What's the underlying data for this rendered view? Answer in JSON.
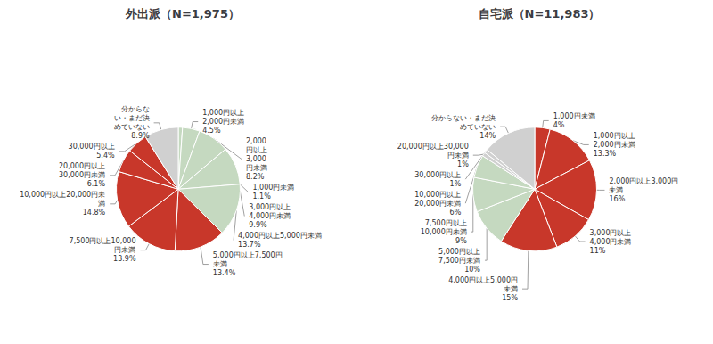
{
  "chart_data": [
    {
      "type": "pie",
      "title": "外出派（N=1,975）",
      "categories": [
        "1,000円未満",
        "1,000円以上\n2,000円未満",
        "2,000\n円以上\n3,000\n円未満",
        "3,000円以上\n4,000円未満",
        "4,000円以上5,000円未満",
        "5,000円以上7,500円\n未満",
        "7,500円以上10,000\n円未満",
        "10,000円以上20,000円未\n満",
        "20,000円以上\n30,000円未満",
        "30,000円以上",
        "分からな\nい・まだ決\nめていない"
      ],
      "values": [
        1.1,
        4.5,
        8.2,
        9.9,
        13.7,
        13.4,
        13.9,
        14.8,
        6.1,
        5.4,
        8.9
      ],
      "value_labels": [
        "1.1%",
        "4.5%",
        "8.2%",
        "9.9%",
        "13.7%",
        "13.4%",
        "13.9%",
        "14.8%",
        "6.1%",
        "5.4%",
        "8.9%"
      ],
      "colors": [
        "#c5d9c0",
        "#c5d9c0",
        "#c5d9c0",
        "#c5d9c0",
        "#c5d9c0",
        "#c8372a",
        "#c8372a",
        "#c8372a",
        "#c8372a",
        "#c8372a",
        "#d0d0d0"
      ],
      "data_labels": true
    },
    {
      "type": "pie",
      "title": "自宅派（N=11,983）",
      "categories": [
        "1,000円未満",
        "1,000円以上\n2,000円未満",
        "2,000円以上3,000円\n未満",
        "3,000円以上\n4,000円未満",
        "4,000円以上5,000円\n未満",
        "5,000円以上\n7,500円未満",
        "7,500円以上\n10,000円未満",
        "10,000円以上\n20,000円未満",
        "20,000円以上30,000\n円未満",
        "30,000円以上",
        "分からない・まだ決\nめていない"
      ],
      "values": [
        4,
        13.3,
        16,
        11,
        15,
        10,
        9,
        6,
        1,
        1,
        14
      ],
      "value_labels": [
        "4%",
        "13.3%",
        "16%",
        "11%",
        "15%",
        "10%",
        "9%",
        "6%",
        "1%",
        "1%",
        "14%"
      ],
      "colors": [
        "#c8372a",
        "#c8372a",
        "#c8372a",
        "#c8372a",
        "#c8372a",
        "#c5d9c0",
        "#c5d9c0",
        "#c5d9c0",
        "#d0d0d0",
        "#d0d0d0",
        "#d0d0d0"
      ],
      "data_labels": true
    }
  ]
}
